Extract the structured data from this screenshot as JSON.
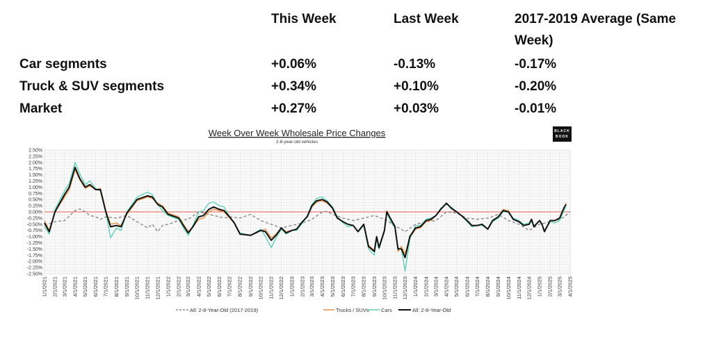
{
  "table": {
    "headers": [
      "This Week",
      "Last Week",
      "2017-2019 Average (Same",
      "Week)"
    ],
    "rows": [
      {
        "label": "Car segments",
        "this_week": "+0.06%",
        "last_week": "-0.13%",
        "avg": "-0.17%"
      },
      {
        "label": "Truck & SUV segments",
        "this_week": "+0.34%",
        "last_week": "+0.10%",
        "avg": "-0.20%"
      },
      {
        "label": "Market",
        "this_week": "+0.27%",
        "last_week": "+0.03%",
        "avg": "-0.01%"
      }
    ]
  },
  "logo": {
    "line1": "BLACK",
    "line2": "BOOK"
  },
  "chart_data": {
    "type": "line",
    "title": "Week Over Week Wholesale Price Changes",
    "subtitle": "2-8-year-old vehicles",
    "ylim": [
      -2.5,
      2.5
    ],
    "xlim": [
      "2021-01-01",
      "2025-04-01"
    ],
    "grid": true,
    "legend_position": "bottom",
    "reference_line": {
      "value": 0,
      "color": "#e05a4f"
    },
    "y_ticks": [
      "2.50%",
      "2.25%",
      "2.00%",
      "1.75%",
      "1.50%",
      "1.25%",
      "1.00%",
      "0.75%",
      "0.50%",
      "0.25%",
      "0.00%",
      "-0.25%",
      "-0.50%",
      "-0.75%",
      "-1.00%",
      "-1.25%",
      "-1.50%",
      "-1.75%",
      "-2.00%",
      "-2.25%",
      "-2.50%"
    ],
    "x_ticks": [
      "1/1/2021",
      "2/1/2021",
      "3/1/2021",
      "4/1/2021",
      "5/1/2021",
      "6/1/2021",
      "7/1/2021",
      "8/1/2021",
      "9/1/2021",
      "10/1/2021",
      "11/1/2021",
      "12/1/2021",
      "1/1/2022",
      "2/1/2022",
      "3/1/2022",
      "4/1/2022",
      "5/1/2022",
      "6/1/2022",
      "7/1/2022",
      "8/1/2022",
      "9/1/2022",
      "10/1/2022",
      "11/1/2022",
      "12/1/2022",
      "1/1/2023",
      "2/1/2023",
      "3/1/2023",
      "4/1/2023",
      "5/1/2023",
      "6/1/2023",
      "7/1/2023",
      "8/1/2023",
      "9/1/2023",
      "10/1/2023",
      "11/1/2023",
      "12/1/2023",
      "1/1/2024",
      "2/1/2024",
      "3/1/2024",
      "4/1/2024",
      "5/1/2024",
      "6/1/2024",
      "7/1/2024",
      "8/1/2024",
      "9/1/2024",
      "10/1/2024",
      "11/1/2024",
      "12/1/2024",
      "1/1/2025",
      "2/1/2025",
      "3/1/2025",
      "4/1/2025"
    ],
    "x": [
      "2021-01-01",
      "2021-01-15",
      "2021-02-01",
      "2021-03-01",
      "2021-03-15",
      "2021-04-01",
      "2021-04-15",
      "2021-05-01",
      "2021-05-15",
      "2021-06-01",
      "2021-06-15",
      "2021-07-01",
      "2021-07-15",
      "2021-08-01",
      "2021-08-15",
      "2021-09-01",
      "2021-10-01",
      "2021-11-01",
      "2021-11-15",
      "2021-12-01",
      "2021-12-15",
      "2022-01-01",
      "2022-02-01",
      "2022-02-15",
      "2022-03-01",
      "2022-03-15",
      "2022-04-01",
      "2022-04-15",
      "2022-05-01",
      "2022-05-15",
      "2022-06-01",
      "2022-06-15",
      "2022-07-01",
      "2022-07-15",
      "2022-08-01",
      "2022-09-01",
      "2022-10-01",
      "2022-10-15",
      "2022-11-01",
      "2022-11-15",
      "2022-12-01",
      "2022-12-15",
      "2023-01-01",
      "2023-01-15",
      "2023-02-01",
      "2023-02-15",
      "2023-03-01",
      "2023-03-15",
      "2023-04-01",
      "2023-04-15",
      "2023-05-01",
      "2023-05-15",
      "2023-06-01",
      "2023-06-15",
      "2023-07-01",
      "2023-07-15",
      "2023-08-01",
      "2023-08-15",
      "2023-09-01",
      "2023-09-08",
      "2023-09-15",
      "2023-10-01",
      "2023-10-08",
      "2023-10-20",
      "2023-11-01",
      "2023-11-10",
      "2023-11-20",
      "2023-12-01",
      "2023-12-15",
      "2024-01-01",
      "2024-01-15",
      "2024-02-01",
      "2024-02-15",
      "2024-03-01",
      "2024-03-15",
      "2024-04-01",
      "2024-04-15",
      "2024-05-01",
      "2024-05-15",
      "2024-06-01",
      "2024-06-15",
      "2024-07-01",
      "2024-07-15",
      "2024-08-01",
      "2024-08-15",
      "2024-09-01",
      "2024-09-15",
      "2024-10-01",
      "2024-10-15",
      "2024-11-01",
      "2024-11-15",
      "2024-12-01",
      "2024-12-08",
      "2024-12-15",
      "2025-01-01",
      "2025-01-08",
      "2025-01-15",
      "2025-02-01",
      "2025-02-15",
      "2025-03-01",
      "2025-03-15",
      "2025-03-20"
    ],
    "series": [
      {
        "name": "Trucks / SUVs",
        "color": "#e8904a",
        "style": "solid",
        "values": [
          -0.35,
          -0.75,
          0.0,
          0.6,
          0.9,
          1.7,
          1.3,
          0.95,
          1.05,
          0.9,
          0.95,
          0.05,
          -0.5,
          -0.45,
          -0.55,
          -0.1,
          0.45,
          0.6,
          0.55,
          0.35,
          0.25,
          -0.05,
          -0.2,
          -0.5,
          -0.8,
          -0.6,
          -0.3,
          -0.25,
          0.0,
          0.1,
          0.05,
          0.0,
          -0.25,
          -0.45,
          -0.9,
          -0.95,
          -0.75,
          -0.7,
          -1.05,
          -0.9,
          -0.65,
          -0.8,
          -0.75,
          -0.7,
          -0.4,
          -0.2,
          0.2,
          0.4,
          0.45,
          0.35,
          0.15,
          -0.25,
          -0.4,
          -0.5,
          -0.55,
          -0.8,
          -0.5,
          -1.35,
          -1.55,
          -1.0,
          -1.4,
          -0.75,
          0.05,
          -0.3,
          -0.55,
          -1.6,
          -1.4,
          -1.7,
          -1.05,
          -0.7,
          -0.65,
          -0.4,
          -0.35,
          -0.15,
          0.1,
          0.35,
          0.15,
          0.0,
          -0.15,
          -0.35,
          -0.55,
          -0.55,
          -0.5,
          -0.7,
          -0.35,
          -0.2,
          0.1,
          0.05,
          -0.3,
          -0.4,
          -0.55,
          -0.5,
          -0.3,
          -0.6,
          -0.35,
          -0.5,
          -0.8,
          -0.35,
          -0.35,
          -0.25,
          0.2,
          0.35
        ]
      },
      {
        "name": "Cars",
        "color": "#5fd3b5",
        "style": "solid",
        "values": [
          -0.6,
          -0.9,
          0.1,
          0.85,
          1.15,
          2.0,
          1.55,
          1.1,
          1.25,
          0.95,
          0.85,
          0.0,
          -1.05,
          -0.65,
          -0.75,
          0.0,
          0.6,
          0.8,
          0.7,
          0.3,
          0.05,
          -0.15,
          -0.3,
          -0.65,
          -0.95,
          -0.55,
          0.0,
          0.05,
          0.35,
          0.4,
          0.25,
          0.2,
          -0.2,
          -0.45,
          -0.85,
          -0.95,
          -0.7,
          -1.0,
          -1.45,
          -1.05,
          -0.7,
          -0.9,
          -0.75,
          -0.75,
          -0.45,
          -0.15,
          0.3,
          0.55,
          0.6,
          0.45,
          0.2,
          -0.2,
          -0.45,
          -0.6,
          -0.55,
          -0.8,
          -0.55,
          -1.5,
          -1.75,
          -1.1,
          -1.5,
          -0.8,
          -0.05,
          -0.4,
          -0.65,
          -1.45,
          -1.5,
          -2.4,
          -1.1,
          -0.55,
          -0.55,
          -0.3,
          -0.25,
          -0.15,
          0.15,
          0.3,
          0.2,
          0.0,
          -0.15,
          -0.4,
          -0.6,
          -0.55,
          -0.55,
          -0.7,
          -0.4,
          -0.25,
          0.0,
          0.0,
          -0.25,
          -0.35,
          -0.5,
          -0.45,
          -0.4,
          -0.55,
          -0.35,
          -0.5,
          -0.75,
          -0.4,
          -0.45,
          -0.35,
          0.1,
          0.2
        ]
      },
      {
        "name": "All: 2-8-Year-Old",
        "color": "#111111",
        "style": "solid",
        "values": [
          -0.45,
          -0.8,
          0.0,
          0.7,
          1.0,
          1.8,
          1.35,
          1.0,
          1.1,
          0.9,
          0.9,
          0.0,
          -0.6,
          -0.55,
          -0.6,
          -0.05,
          0.5,
          0.65,
          0.6,
          0.3,
          0.2,
          -0.1,
          -0.25,
          -0.55,
          -0.85,
          -0.6,
          -0.2,
          -0.15,
          0.1,
          0.2,
          0.1,
          0.05,
          -0.2,
          -0.45,
          -0.9,
          -0.95,
          -0.75,
          -0.8,
          -1.15,
          -0.95,
          -0.65,
          -0.85,
          -0.75,
          -0.7,
          -0.4,
          -0.2,
          0.25,
          0.45,
          0.5,
          0.4,
          0.15,
          -0.25,
          -0.4,
          -0.5,
          -0.55,
          -0.8,
          -0.5,
          -1.4,
          -1.6,
          -1.0,
          -1.45,
          -0.75,
          0.0,
          -0.3,
          -0.6,
          -1.5,
          -1.5,
          -1.85,
          -1.0,
          -0.65,
          -0.6,
          -0.35,
          -0.3,
          -0.15,
          0.1,
          0.35,
          0.15,
          0.0,
          -0.15,
          -0.35,
          -0.55,
          -0.55,
          -0.5,
          -0.7,
          -0.35,
          -0.2,
          0.05,
          0.0,
          -0.3,
          -0.4,
          -0.55,
          -0.5,
          -0.3,
          -0.6,
          -0.35,
          -0.5,
          -0.8,
          -0.35,
          -0.35,
          -0.25,
          0.2,
          0.3
        ]
      },
      {
        "name": "All: 2-8-Year-Old (2017-2019)",
        "color": "#888888",
        "style": "dashed",
        "x": [
          "2021-01-01",
          "2021-02-01",
          "2021-03-01",
          "2021-04-01",
          "2021-04-15",
          "2021-05-01",
          "2021-05-15",
          "2021-06-01",
          "2021-06-15",
          "2021-07-01",
          "2021-08-01",
          "2021-09-01",
          "2021-10-01",
          "2021-11-01",
          "2021-11-15",
          "2021-12-01",
          "2021-12-15",
          "2022-01-01",
          "2022-02-01",
          "2022-03-01",
          "2022-04-01",
          "2022-05-01",
          "2022-06-01",
          "2022-06-15",
          "2022-07-01",
          "2022-08-01",
          "2022-09-01",
          "2022-10-01",
          "2022-11-01",
          "2022-12-01",
          "2023-01-01",
          "2023-02-01",
          "2023-03-01",
          "2023-04-01",
          "2023-04-15",
          "2023-05-01",
          "2023-06-01",
          "2023-07-01",
          "2023-08-01",
          "2023-09-01",
          "2023-10-01",
          "2023-11-01",
          "2023-12-01",
          "2024-01-01",
          "2024-02-01",
          "2024-03-01",
          "2024-04-01",
          "2024-05-01",
          "2024-06-01",
          "2024-07-01",
          "2024-08-01",
          "2024-09-01",
          "2024-10-01",
          "2024-11-01",
          "2024-12-01",
          "2025-01-01",
          "2025-02-01",
          "2025-03-01",
          "2025-03-15",
          "2025-04-01"
        ],
        "values": [
          -0.55,
          -0.4,
          -0.35,
          0.05,
          0.12,
          0.0,
          -0.15,
          -0.2,
          -0.3,
          -0.2,
          -0.25,
          -0.15,
          -0.4,
          -0.65,
          -0.5,
          -0.8,
          -0.55,
          -0.5,
          -0.35,
          -0.3,
          0.0,
          -0.1,
          -0.2,
          -0.25,
          -0.2,
          -0.25,
          -0.1,
          -0.35,
          -0.5,
          -0.65,
          -0.55,
          -0.45,
          -0.3,
          0.0,
          0.02,
          -0.1,
          -0.25,
          -0.35,
          -0.25,
          -0.15,
          -0.3,
          -0.55,
          -0.8,
          -0.5,
          -0.4,
          -0.35,
          0.0,
          -0.05,
          -0.25,
          -0.3,
          -0.25,
          -0.1,
          -0.35,
          -0.5,
          -0.75,
          -0.5,
          -0.4,
          -0.3,
          -0.2,
          0.02
        ]
      }
    ],
    "legend": [
      "All: 2-8-Year-Old (2017-2019)",
      "Trucks / SUVs",
      "Cars",
      "All: 2-8-Year-Old"
    ]
  }
}
